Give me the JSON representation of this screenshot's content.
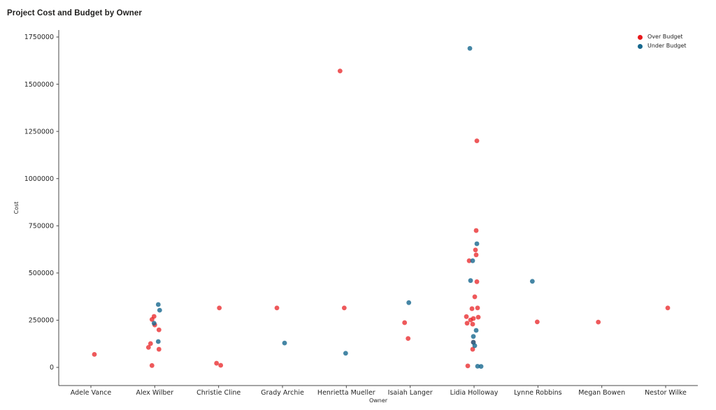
{
  "window": {
    "background": "#ffffff"
  },
  "chart": {
    "title": "Project Cost and Budget by Owner"
  },
  "chart_data": {
    "type": "scatter",
    "title": "Project Cost and Budget by Owner",
    "xlabel": "Owner",
    "ylabel": "Cost",
    "ylim": [
      0,
      1750000
    ],
    "yticks": [
      0,
      250000,
      500000,
      750000,
      1000000,
      1250000,
      1500000,
      1750000
    ],
    "grid": false,
    "legend_position": "top-right",
    "spines": [
      "left",
      "bottom"
    ],
    "axis_color": "#4a4a4a",
    "categories": [
      "Adele Vance",
      "Alex Wilber",
      "Christie Cline",
      "Grady Archie",
      "Henrietta Mueller",
      "Isaiah Langer",
      "Lidia Holloway",
      "Lynne Robbins",
      "Megan Bowen",
      "Nestor Wilke"
    ],
    "series": [
      {
        "name": "Over Budget",
        "color": "#e8191c",
        "point_alpha": 0.72,
        "points": [
          {
            "owner": "Adele Vance",
            "value": 69000,
            "dx": 5
          },
          {
            "owner": "Alex Wilber",
            "value": 270000,
            "dx": -1
          },
          {
            "owner": "Alex Wilber",
            "value": 254000,
            "dx": -4
          },
          {
            "owner": "Alex Wilber",
            "value": 225000,
            "dx": 0
          },
          {
            "owner": "Alex Wilber",
            "value": 199000,
            "dx": 6
          },
          {
            "owner": "Alex Wilber",
            "value": 126000,
            "dx": -6
          },
          {
            "owner": "Alex Wilber",
            "value": 106000,
            "dx": -9
          },
          {
            "owner": "Alex Wilber",
            "value": 96000,
            "dx": 6
          },
          {
            "owner": "Alex Wilber",
            "value": 10000,
            "dx": -4
          },
          {
            "owner": "Christie Cline",
            "value": 315000,
            "dx": 1
          },
          {
            "owner": "Christie Cline",
            "value": 22000,
            "dx": -3
          },
          {
            "owner": "Christie Cline",
            "value": 11000,
            "dx": 3
          },
          {
            "owner": "Grady Archie",
            "value": 315000,
            "dx": -8
          },
          {
            "owner": "Henrietta Mueller",
            "value": 1570000,
            "dx": -9
          },
          {
            "owner": "Henrietta Mueller",
            "value": 315000,
            "dx": -3
          },
          {
            "owner": "Isaiah Langer",
            "value": 237000,
            "dx": -8
          },
          {
            "owner": "Isaiah Langer",
            "value": 153000,
            "dx": -3
          },
          {
            "owner": "Lidia Holloway",
            "value": 1200000,
            "dx": 4
          },
          {
            "owner": "Lidia Holloway",
            "value": 725000,
            "dx": 3
          },
          {
            "owner": "Lidia Holloway",
            "value": 622000,
            "dx": 2
          },
          {
            "owner": "Lidia Holloway",
            "value": 596000,
            "dx": 3
          },
          {
            "owner": "Lidia Holloway",
            "value": 565000,
            "dx": -7
          },
          {
            "owner": "Lidia Holloway",
            "value": 454000,
            "dx": 4
          },
          {
            "owner": "Lidia Holloway",
            "value": 374000,
            "dx": 1
          },
          {
            "owner": "Lidia Holloway",
            "value": 315000,
            "dx": 5
          },
          {
            "owner": "Lidia Holloway",
            "value": 311000,
            "dx": -3
          },
          {
            "owner": "Lidia Holloway",
            "value": 269000,
            "dx": -11
          },
          {
            "owner": "Lidia Holloway",
            "value": 266000,
            "dx": 6
          },
          {
            "owner": "Lidia Holloway",
            "value": 259000,
            "dx": -1
          },
          {
            "owner": "Lidia Holloway",
            "value": 251000,
            "dx": -5
          },
          {
            "owner": "Lidia Holloway",
            "value": 234000,
            "dx": -10
          },
          {
            "owner": "Lidia Holloway",
            "value": 229000,
            "dx": -2
          },
          {
            "owner": "Lidia Holloway",
            "value": 133000,
            "dx": -1
          },
          {
            "owner": "Lidia Holloway",
            "value": 96000,
            "dx": -2
          },
          {
            "owner": "Lidia Holloway",
            "value": 8000,
            "dx": -9
          },
          {
            "owner": "Lynne Robbins",
            "value": 241000,
            "dx": -1
          },
          {
            "owner": "Megan Bowen",
            "value": 240000,
            "dx": -5
          },
          {
            "owner": "Nestor Wilke",
            "value": 315000,
            "dx": 3
          }
        ]
      },
      {
        "name": "Under Budget",
        "color": "#17688e",
        "point_alpha": 0.8,
        "points": [
          {
            "owner": "Alex Wilber",
            "value": 333000,
            "dx": 5
          },
          {
            "owner": "Alex Wilber",
            "value": 303000,
            "dx": 7
          },
          {
            "owner": "Alex Wilber",
            "value": 234000,
            "dx": -1
          },
          {
            "owner": "Alex Wilber",
            "value": 137000,
            "dx": 5
          },
          {
            "owner": "Grady Archie",
            "value": 129000,
            "dx": 3
          },
          {
            "owner": "Henrietta Mueller",
            "value": 75000,
            "dx": -1
          },
          {
            "owner": "Isaiah Langer",
            "value": 343000,
            "dx": -2
          },
          {
            "owner": "Lidia Holloway",
            "value": 1690000,
            "dx": -6
          },
          {
            "owner": "Lidia Holloway",
            "value": 655000,
            "dx": 4
          },
          {
            "owner": "Lidia Holloway",
            "value": 565000,
            "dx": -2
          },
          {
            "owner": "Lidia Holloway",
            "value": 460000,
            "dx": -5
          },
          {
            "owner": "Lidia Holloway",
            "value": 196000,
            "dx": 3
          },
          {
            "owner": "Lidia Holloway",
            "value": 164000,
            "dx": -1
          },
          {
            "owner": "Lidia Holloway",
            "value": 133000,
            "dx": -1
          },
          {
            "owner": "Lidia Holloway",
            "value": 115000,
            "dx": 1
          },
          {
            "owner": "Lidia Holloway",
            "value": 6000,
            "dx": 5
          },
          {
            "owner": "Lidia Holloway",
            "value": 5000,
            "dx": 10
          },
          {
            "owner": "Lynne Robbins",
            "value": 456000,
            "dx": -8
          }
        ]
      }
    ]
  }
}
